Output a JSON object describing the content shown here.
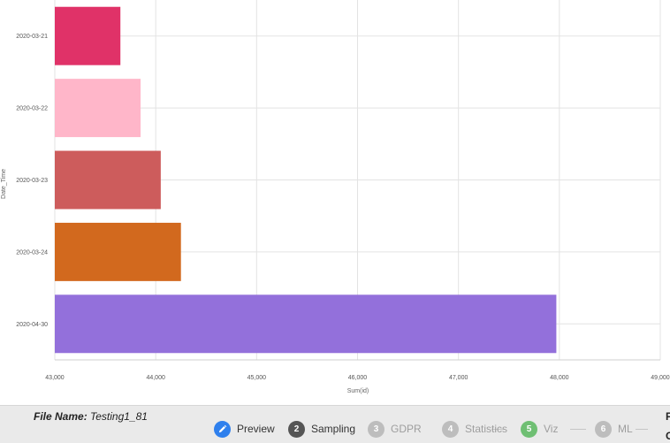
{
  "chart_data": {
    "type": "bar",
    "orientation": "horizontal",
    "categories": [
      "2020-03-21",
      "2020-03-22",
      "2020-03-23",
      "2020-03-24",
      "2020-04-30"
    ],
    "values": [
      43650,
      43850,
      44050,
      44250,
      47970
    ],
    "colors": [
      "#e03268",
      "#ffb6c9",
      "#cd5c5c",
      "#d2691e",
      "#9370db"
    ],
    "xlabel": "Sum(id)",
    "ylabel": "Date_Time",
    "xlim": [
      43000,
      49000
    ],
    "xticks": [
      43000,
      44000,
      45000,
      46000,
      47000,
      48000,
      49000
    ],
    "xtick_labels": [
      "43,000",
      "44,000",
      "45,000",
      "46,000",
      "47,000",
      "48,000",
      "49,000"
    ],
    "grid": true
  },
  "footer": {
    "file_label": "File Name:",
    "file_value": "Testing1_81",
    "cut_char_top": "F",
    "cut_char_bottom": "C",
    "steps": [
      {
        "number": "",
        "label": "Preview",
        "icon": "pencil-icon",
        "state": "active",
        "color": "#2f80ed"
      },
      {
        "number": "2",
        "label": "Sampling",
        "state": "done",
        "color": "#555555"
      },
      {
        "number": "3",
        "label": "GDPR",
        "state": "pending",
        "color": "#bdbdbd"
      },
      {
        "number": "4",
        "label": "Statistics",
        "state": "pending",
        "color": "#bdbdbd"
      },
      {
        "number": "5",
        "label": "Viz",
        "state": "current",
        "color": "#6fbf73"
      },
      {
        "number": "6",
        "label": "ML",
        "state": "pending",
        "color": "#bdbdbd"
      }
    ]
  }
}
